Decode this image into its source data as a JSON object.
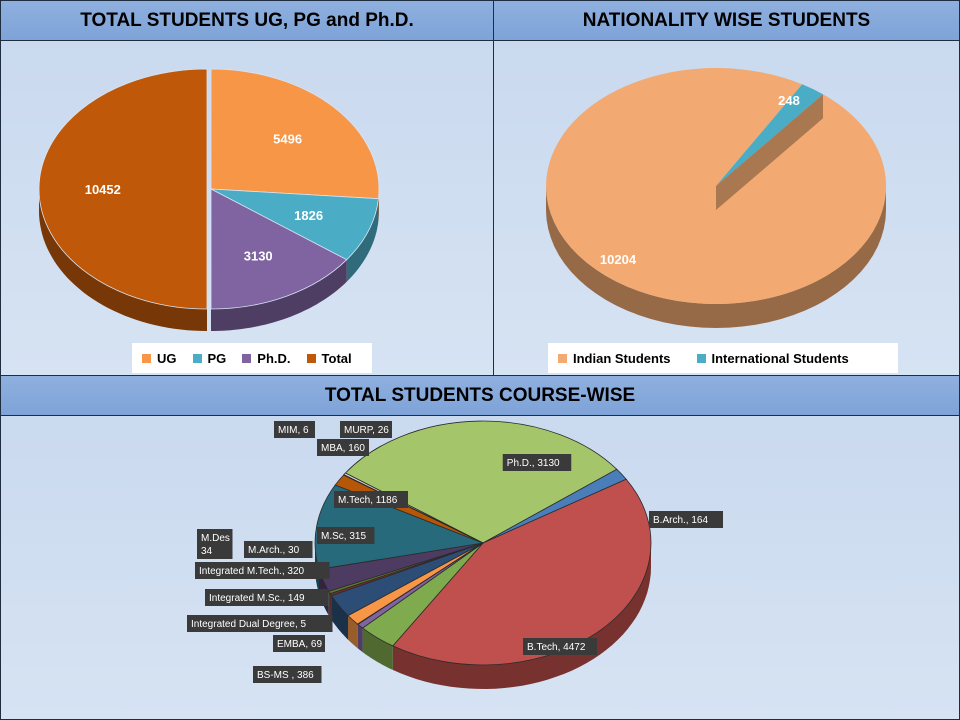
{
  "panels": {
    "total": {
      "title": "TOTAL STUDENTS UG, PG and  Ph.D."
    },
    "nationality": {
      "title": "NATIONALITY WISE STUDENTS"
    },
    "course": {
      "title": "TOTAL STUDENTS COURSE-WISE"
    }
  },
  "chart_data": [
    {
      "type": "pie",
      "title": "TOTAL STUDENTS UG, PG and  Ph.D.",
      "legend_position": "bottom",
      "slices": [
        {
          "label": "UG",
          "value": 5496,
          "color": "#f79646"
        },
        {
          "label": "PG",
          "value": 1826,
          "color": "#4bacc6"
        },
        {
          "label": "Ph.D.",
          "value": 3130,
          "color": "#8064a2"
        },
        {
          "label": "Total",
          "value": 10452,
          "color": "#c0580a"
        }
      ]
    },
    {
      "type": "pie",
      "title": "NATIONALITY WISE STUDENTS",
      "legend_position": "bottom",
      "slices": [
        {
          "label": "Indian Students",
          "value": 10204,
          "color": "#f2aa72"
        },
        {
          "label": "International Students",
          "value": 248,
          "color": "#4bacc6"
        }
      ]
    },
    {
      "type": "pie",
      "title": "TOTAL STUDENTS COURSE-WISE",
      "slices": [
        {
          "label": "Ph.D.",
          "value": 3130,
          "color": "#a4c56a",
          "data_label": "Ph.D., 3130"
        },
        {
          "label": "B.Arch.",
          "value": 164,
          "color": "#4a7ebb",
          "data_label": "B.Arch., 164"
        },
        {
          "label": "B.Tech",
          "value": 4472,
          "color": "#c0504d",
          "data_label": "B.Tech, 4472"
        },
        {
          "label": "BS-MS",
          "value": 386,
          "color": "#7faa4e",
          "data_label": "BS-MS , 386"
        },
        {
          "label": "EMBA",
          "value": 69,
          "color": "#8064a2",
          "data_label": "EMBA, 69"
        },
        {
          "label": "Integrated Dual Degree",
          "value": 5,
          "color": "#4bacc6",
          "data_label": "Integrated Dual Degree, 5"
        },
        {
          "label": "Integrated M.Sc.",
          "value": 149,
          "color": "#f79646",
          "data_label": "Integrated M.Sc., 149"
        },
        {
          "label": "Integrated M.Tech.",
          "value": 320,
          "color": "#2c4d75",
          "data_label": "Integrated M.Tech., 320"
        },
        {
          "label": "M.Arch.",
          "value": 30,
          "color": "#772c2a",
          "data_label": "M.Arch., 30"
        },
        {
          "label": "M.Des",
          "value": 34,
          "color": "#5f7530",
          "data_label": "M.Des\n34"
        },
        {
          "label": "M.Sc",
          "value": 315,
          "color": "#4d3b62",
          "data_label": "M.Sc, 315"
        },
        {
          "label": "M.Tech",
          "value": 1186,
          "color": "#276a7c",
          "data_label": "M.Tech, 1186"
        },
        {
          "label": "MBA",
          "value": 160,
          "color": "#b65708",
          "data_label": "MBA, 160"
        },
        {
          "label": "MIM",
          "value": 6,
          "color": "#729aca",
          "data_label": "MIM, 6"
        },
        {
          "label": "MURP",
          "value": 26,
          "color": "#d9d9d9",
          "data_label": "MURP, 26"
        }
      ]
    }
  ]
}
